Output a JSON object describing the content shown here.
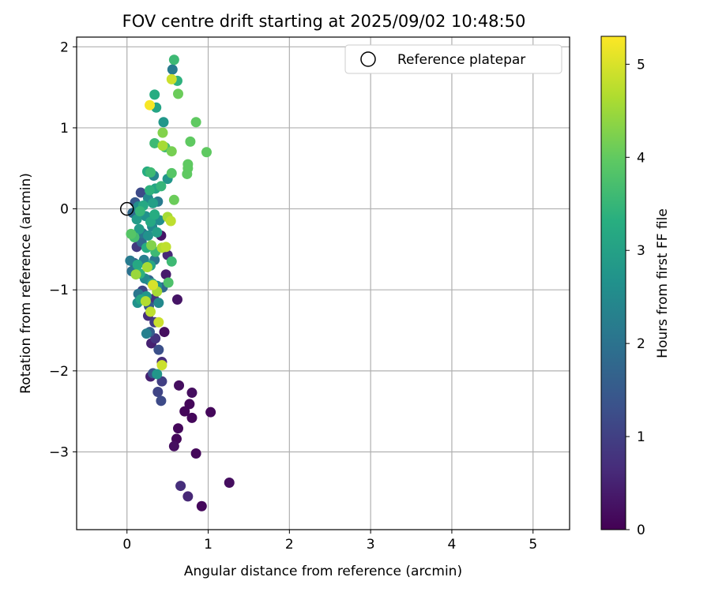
{
  "chart_data": {
    "type": "scatter",
    "title": "FOV centre drift starting at 2025/09/02 10:48:50",
    "xlabel": "Angular distance from reference (arcmin)",
    "ylabel": "Rotation from reference (arcmin)",
    "xlim": [
      -0.62,
      5.45
    ],
    "ylim": [
      -3.96,
      2.12
    ],
    "xticks": [
      0,
      1,
      2,
      3,
      4,
      5
    ],
    "yticks": [
      -3,
      -2,
      -1,
      0,
      1,
      2
    ],
    "grid": true,
    "legend": {
      "position": "top-right",
      "entries": [
        "Reference platepar"
      ]
    },
    "reference_point": {
      "x": 0,
      "y": 0
    },
    "colorbar": {
      "label": "Hours from first FF file",
      "range": [
        0,
        5.3
      ],
      "ticks": [
        0,
        1,
        2,
        3,
        4,
        5
      ],
      "colormap": "viridis"
    },
    "series": [
      {
        "fields": [
          "x",
          "y",
          "hours"
        ],
        "points": [
          [
            0.28,
            1.28,
            5.25
          ],
          [
            0.36,
            1.25,
            3.1
          ],
          [
            0.45,
            1.07,
            2.8
          ],
          [
            0.34,
            1.41,
            3.3
          ],
          [
            0.58,
            1.84,
            3.6
          ],
          [
            0.56,
            1.72,
            2.2
          ],
          [
            0.55,
            1.6,
            4.9
          ],
          [
            0.62,
            1.58,
            3.4
          ],
          [
            0.63,
            1.42,
            4.1
          ],
          [
            0.85,
            1.07,
            4.0
          ],
          [
            0.78,
            0.83,
            4.0
          ],
          [
            0.98,
            0.7,
            4.0
          ],
          [
            0.75,
            0.55,
            4.0
          ],
          [
            0.75,
            0.5,
            4.0
          ],
          [
            0.74,
            0.43,
            4.0
          ],
          [
            0.44,
            0.94,
            4.3
          ],
          [
            0.34,
            0.81,
            3.6
          ],
          [
            0.44,
            0.78,
            4.6
          ],
          [
            0.47,
            0.76,
            3.7
          ],
          [
            0.55,
            0.71,
            4.2
          ],
          [
            0.55,
            0.44,
            3.9
          ],
          [
            0.5,
            0.37,
            2.8
          ],
          [
            0.25,
            0.46,
            3.3
          ],
          [
            0.29,
            0.45,
            3.6
          ],
          [
            0.33,
            0.41,
            2.4
          ],
          [
            0.58,
            0.11,
            4.1
          ],
          [
            0.42,
            0.28,
            3.5
          ],
          [
            0.35,
            0.25,
            3.1
          ],
          [
            0.28,
            0.23,
            3.4
          ],
          [
            0.17,
            0.2,
            1.2
          ],
          [
            0.1,
            0.08,
            1.5
          ],
          [
            0.14,
            0.03,
            2.6
          ],
          [
            0.2,
            0.04,
            3.2
          ],
          [
            0.26,
            0.13,
            2.5
          ],
          [
            0.32,
            0.07,
            3.0
          ],
          [
            0.38,
            0.09,
            2.2
          ],
          [
            0.07,
            -0.05,
            1.8
          ],
          [
            0.12,
            -0.13,
            2.9
          ],
          [
            0.16,
            -0.03,
            3.5
          ],
          [
            0.23,
            -0.09,
            2.7
          ],
          [
            0.29,
            -0.16,
            3.2
          ],
          [
            0.34,
            -0.07,
            3.3
          ],
          [
            0.4,
            -0.14,
            2.6
          ],
          [
            0.5,
            -0.1,
            4.6
          ],
          [
            0.54,
            -0.15,
            4.8
          ],
          [
            0.05,
            -0.31,
            3.9
          ],
          [
            0.09,
            -0.35,
            3.7
          ],
          [
            0.15,
            -0.25,
            2.9
          ],
          [
            0.19,
            -0.3,
            2.1
          ],
          [
            0.26,
            -0.33,
            2.7
          ],
          [
            0.31,
            -0.22,
            2.5
          ],
          [
            0.37,
            -0.29,
            3.0
          ],
          [
            0.42,
            -0.33,
            0.3
          ],
          [
            0.12,
            -0.47,
            0.9
          ],
          [
            0.18,
            -0.41,
            1.8
          ],
          [
            0.24,
            -0.48,
            3.3
          ],
          [
            0.3,
            -0.45,
            4.3
          ],
          [
            0.35,
            -0.53,
            3.6
          ],
          [
            0.43,
            -0.48,
            4.7
          ],
          [
            0.48,
            -0.47,
            4.8
          ],
          [
            0.5,
            -0.57,
            0.6
          ],
          [
            0.04,
            -0.64,
            2.2
          ],
          [
            0.09,
            -0.67,
            1.5
          ],
          [
            0.13,
            -0.69,
            3.2
          ],
          [
            0.21,
            -0.63,
            2.3
          ],
          [
            0.25,
            -0.72,
            4.6
          ],
          [
            0.29,
            -0.7,
            3.1
          ],
          [
            0.34,
            -0.63,
            2.1
          ],
          [
            0.55,
            -0.65,
            3.6
          ],
          [
            0.06,
            -0.77,
            2.0
          ],
          [
            0.11,
            -0.81,
            4.5
          ],
          [
            0.16,
            -0.8,
            3.4
          ],
          [
            0.22,
            -0.86,
            2.5
          ],
          [
            0.27,
            -0.88,
            1.7
          ],
          [
            0.31,
            -0.92,
            3.0
          ],
          [
            0.37,
            -0.95,
            2.6
          ],
          [
            0.44,
            -0.97,
            1.8
          ],
          [
            0.48,
            -0.81,
            0.4
          ],
          [
            0.51,
            -0.91,
            3.8
          ],
          [
            0.14,
            -1.05,
            2.1
          ],
          [
            0.19,
            -1.01,
            1.1
          ],
          [
            0.24,
            -1.08,
            2.8
          ],
          [
            0.32,
            -0.94,
            5.0
          ],
          [
            0.37,
            -1.02,
            4.6
          ],
          [
            0.62,
            -1.12,
            0.3
          ],
          [
            0.13,
            -1.16,
            2.7
          ],
          [
            0.17,
            -1.12,
            3.1
          ],
          [
            0.23,
            -1.14,
            4.7
          ],
          [
            0.27,
            -1.2,
            1.5
          ],
          [
            0.33,
            -1.11,
            0.8
          ],
          [
            0.39,
            -1.16,
            2.5
          ],
          [
            0.26,
            -1.32,
            0.7
          ],
          [
            0.29,
            -1.27,
            4.8
          ],
          [
            0.34,
            -1.4,
            0.9
          ],
          [
            0.39,
            -1.4,
            4.9
          ],
          [
            0.46,
            -1.52,
            0.2
          ],
          [
            0.24,
            -1.54,
            2.3
          ],
          [
            0.28,
            -1.52,
            1.6
          ],
          [
            0.35,
            -1.6,
            0.8
          ],
          [
            0.3,
            -1.66,
            0.5
          ],
          [
            0.39,
            -1.74,
            1.3
          ],
          [
            0.43,
            -1.89,
            0.7
          ],
          [
            0.43,
            -1.93,
            4.9
          ],
          [
            0.29,
            -2.07,
            0.5
          ],
          [
            0.32,
            -2.03,
            1.4
          ],
          [
            0.37,
            -2.04,
            2.8
          ],
          [
            0.43,
            -2.13,
            1.0
          ],
          [
            0.38,
            -2.26,
            1.1
          ],
          [
            0.42,
            -2.37,
            1.2
          ],
          [
            0.64,
            -2.18,
            0.2
          ],
          [
            0.8,
            -2.27,
            0.2
          ],
          [
            0.77,
            -2.41,
            0.1
          ],
          [
            0.71,
            -2.5,
            0.1
          ],
          [
            0.8,
            -2.58,
            0.1
          ],
          [
            1.03,
            -2.51,
            0.1
          ],
          [
            0.63,
            -2.71,
            0.1
          ],
          [
            0.61,
            -2.84,
            0.1
          ],
          [
            0.58,
            -2.93,
            0.2
          ],
          [
            0.85,
            -3.02,
            0.1
          ],
          [
            1.26,
            -3.38,
            0.2
          ],
          [
            0.66,
            -3.42,
            0.7
          ],
          [
            0.75,
            -3.55,
            0.6
          ],
          [
            0.92,
            -3.67,
            0.1
          ]
        ]
      }
    ]
  }
}
